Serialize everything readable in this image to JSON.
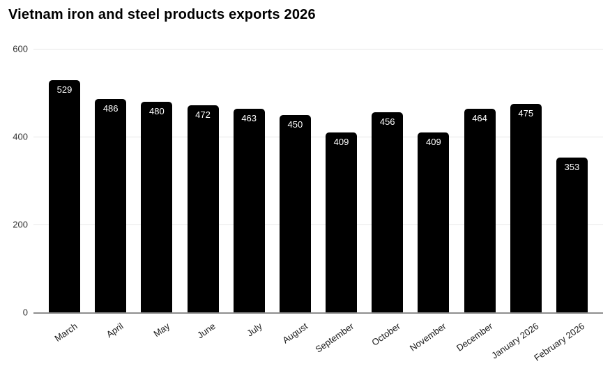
{
  "title": "Vietnam iron and steel products exports 2026",
  "chart_data": {
    "type": "bar",
    "title": "Vietnam iron and steel products exports 2026",
    "categories": [
      "March",
      "April",
      "May",
      "June",
      "July",
      "August",
      "September",
      "October",
      "November",
      "December",
      "January 2026",
      "February 2026"
    ],
    "values": [
      529,
      486,
      480,
      472,
      463,
      450,
      409,
      456,
      409,
      464,
      475,
      353
    ],
    "xlabel": "",
    "ylabel": "",
    "ylim": [
      0,
      600
    ],
    "yticks": [
      0,
      200,
      400,
      600
    ],
    "grid": true,
    "legend_position": "none",
    "bar_color": "#000000",
    "value_label_color": "#ffffff",
    "gridline_color": "#e7e7e7",
    "axis_line_color": "#8e8e8e",
    "tick_label_color": "#333333",
    "background": "#ffffff"
  }
}
